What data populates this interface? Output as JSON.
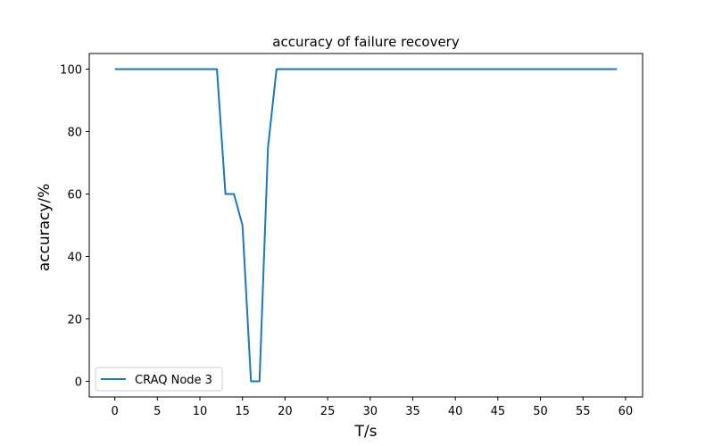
{
  "chart_data": {
    "type": "line",
    "title": "accuracy of failure recovery",
    "xlabel": "T/s",
    "ylabel": "accuracy/%",
    "xlim": [
      -3,
      62
    ],
    "ylim": [
      -5,
      105
    ],
    "xticks": [
      0,
      5,
      10,
      15,
      20,
      25,
      30,
      35,
      40,
      45,
      50,
      55,
      60
    ],
    "yticks": [
      0,
      20,
      40,
      60,
      80,
      100
    ],
    "grid": false,
    "legend_position": "lower-left",
    "series": [
      {
        "name": "CRAQ Node 3",
        "color": "#1f77b4",
        "x": [
          0,
          1,
          2,
          3,
          4,
          5,
          6,
          7,
          8,
          9,
          10,
          11,
          12,
          13,
          14,
          15,
          16,
          17,
          18,
          19,
          20,
          21,
          22,
          23,
          24,
          25,
          26,
          27,
          28,
          29,
          30,
          31,
          32,
          33,
          34,
          35,
          36,
          37,
          38,
          39,
          40,
          41,
          42,
          43,
          44,
          45,
          46,
          47,
          48,
          49,
          50,
          51,
          52,
          53,
          54,
          55,
          56,
          57,
          58,
          59
        ],
        "y": [
          100,
          100,
          100,
          100,
          100,
          100,
          100,
          100,
          100,
          100,
          100,
          100,
          100,
          60,
          60,
          50,
          0,
          0,
          75,
          100,
          100,
          100,
          100,
          100,
          100,
          100,
          100,
          100,
          100,
          100,
          100,
          100,
          100,
          100,
          100,
          100,
          100,
          100,
          100,
          100,
          100,
          100,
          100,
          100,
          100,
          100,
          100,
          100,
          100,
          100,
          100,
          100,
          100,
          100,
          100,
          100,
          100,
          100,
          100,
          100
        ]
      }
    ]
  }
}
